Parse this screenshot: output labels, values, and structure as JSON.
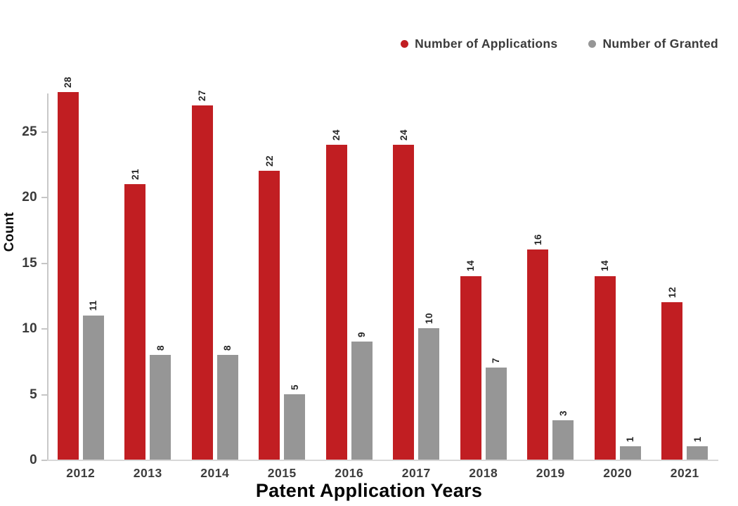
{
  "chart_data": {
    "type": "bar",
    "title": "",
    "xlabel": "Patent Application Years",
    "ylabel": "Count",
    "categories": [
      "2012",
      "2013",
      "2014",
      "2015",
      "2016",
      "2017",
      "2018",
      "2019",
      "2020",
      "2021"
    ],
    "series": [
      {
        "name": "Number of Applications",
        "color": "#C11E22",
        "values": [
          28,
          21,
          27,
          22,
          24,
          24,
          14,
          16,
          14,
          12
        ]
      },
      {
        "name": "Number of Granted",
        "color": "#969696",
        "values": [
          11,
          8,
          8,
          5,
          9,
          10,
          7,
          3,
          1,
          1
        ]
      }
    ],
    "yticks": [
      0,
      5,
      10,
      15,
      20,
      25
    ],
    "ylim": [
      0,
      28
    ],
    "grid": false,
    "legend_position": "top-right",
    "bar_value_labels": true,
    "value_label_rotation": 90
  }
}
